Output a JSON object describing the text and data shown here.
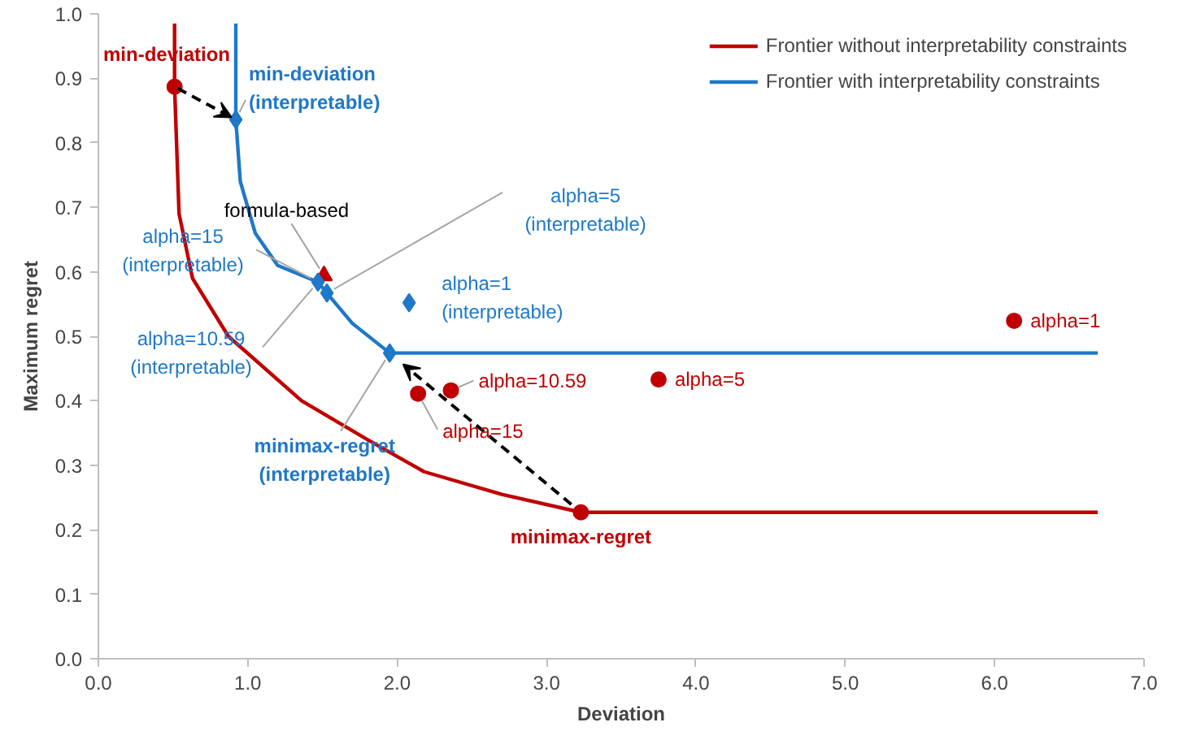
{
  "chart_data": {
    "type": "line",
    "xlabel": "Deviation",
    "ylabel": "Maximum regret",
    "xlim": [
      0,
      7
    ],
    "ylim": [
      0,
      1
    ],
    "xticks": [
      {
        "value": 0,
        "label": "0.0"
      },
      {
        "value": 1,
        "label": "1.0"
      },
      {
        "value": 2,
        "label": "2.0"
      },
      {
        "value": 3,
        "label": "3.0"
      },
      {
        "value": 4,
        "label": "4.0"
      },
      {
        "value": 5,
        "label": "5.0"
      },
      {
        "value": 6,
        "label": "6.0"
      },
      {
        "value": 7,
        "label": "7.0"
      }
    ],
    "yticks": [
      {
        "value": 0,
        "label": "0.0"
      },
      {
        "value": 0.1,
        "label": "0.1"
      },
      {
        "value": 0.2,
        "label": "0.2"
      },
      {
        "value": 0.3,
        "label": "0.3"
      },
      {
        "value": 0.4,
        "label": "0.4"
      },
      {
        "value": 0.5,
        "label": "0.5"
      },
      {
        "value": 0.6,
        "label": "0.6"
      },
      {
        "value": 0.7,
        "label": "0.7"
      },
      {
        "value": 0.8,
        "label": "0.8"
      },
      {
        "value": 0.9,
        "label": "0.9"
      },
      {
        "value": 1,
        "label": "1.0"
      }
    ],
    "grid": false,
    "legend": "top right",
    "series": [
      {
        "name": "Frontier without interpretability constraints",
        "color": "#c00000",
        "x": [
          0.51,
          0.51,
          0.54,
          0.63,
          0.87,
          1.36,
          1.8,
          2.18,
          2.7,
          3.23,
          6.69
        ],
        "values": [
          0.985,
          0.887,
          0.69,
          0.59,
          0.5,
          0.4,
          0.34,
          0.29,
          0.255,
          0.227,
          0.227
        ]
      },
      {
        "name": "Frontier with interpretability constraints",
        "color": "#1f78c8",
        "x": [
          0.92,
          0.92,
          0.95,
          1.05,
          1.2,
          1.47,
          1.53,
          1.7,
          1.95,
          6.69
        ],
        "values": [
          0.985,
          0.836,
          0.74,
          0.66,
          0.61,
          0.584,
          0.567,
          0.52,
          0.474,
          0.474
        ]
      },
      {
        "type": "scatter",
        "marker": "circle",
        "color": "#c00000",
        "x": [
          0.51,
          3.23,
          2.14,
          2.36,
          3.75,
          6.13
        ],
        "values": [
          0.887,
          0.227,
          0.411,
          0.416,
          0.433,
          0.524
        ]
      },
      {
        "type": "scatter",
        "marker": "triangle",
        "color": "#c00000",
        "x": [
          1.51
        ],
        "values": [
          0.594
        ]
      },
      {
        "type": "scatter",
        "marker": "diamond",
        "color": "#1f78c8",
        "x": [
          0.92,
          1.95,
          1.47,
          1.53,
          2.08
        ],
        "values": [
          0.836,
          0.474,
          0.584,
          0.567,
          0.552
        ]
      }
    ],
    "annotations": [
      {
        "text": "min-deviation",
        "x": 0.51,
        "y": 0.887
      },
      {
        "text": "min-deviation\n(interpretable)",
        "x": 0.92,
        "y": 0.836
      },
      {
        "text": "formula-based",
        "x": 1.51,
        "y": 0.594
      },
      {
        "text": "alpha=15\n(interpretable)",
        "x": 1.47,
        "y": 0.584
      },
      {
        "text": "alpha=5\n(interpretable)",
        "x": 1.53,
        "y": 0.567
      },
      {
        "text": "alpha=1\n(interpretable)",
        "x": 2.08,
        "y": 0.552
      },
      {
        "text": "alpha=10.59\n(interpretable)",
        "x": 1.47,
        "y": 0.584
      },
      {
        "text": "minimax-regret\n(interpretable)",
        "x": 1.95,
        "y": 0.474
      },
      {
        "text": "alpha=10.59",
        "x": 2.36,
        "y": 0.416
      },
      {
        "text": "alpha=15",
        "x": 2.14,
        "y": 0.411
      },
      {
        "text": "alpha=5",
        "x": 3.75,
        "y": 0.433
      },
      {
        "text": "alpha=1",
        "x": 6.13,
        "y": 0.524
      },
      {
        "text": "minimax-regret",
        "x": 3.23,
        "y": 0.227
      }
    ]
  }
}
